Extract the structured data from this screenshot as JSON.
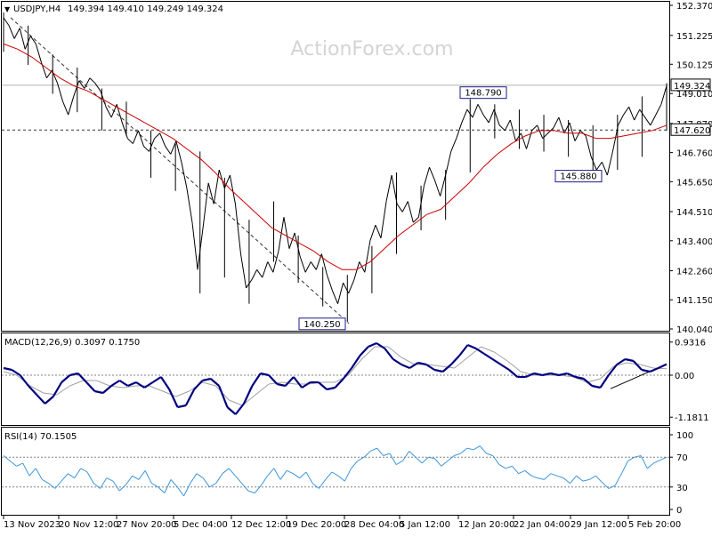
{
  "header": {
    "symbol": "USDJPY,H4",
    "ohlc": "149.394 149.410 149.249 149.324"
  },
  "watermark": "ActionForex.com",
  "colors": {
    "price": "#000000",
    "ma": "#cc0000",
    "macd_main": "#000080",
    "macd_signal": "#a0a0a0",
    "rsi": "#3c96dc",
    "grid": "#808080",
    "tag_border": "#1a1a8c"
  },
  "chart_data": [
    {
      "type": "line",
      "panel": "price",
      "title": "USDJPY,H4",
      "x_ticks": [
        "13 Nov 2023",
        "20 Nov 12:00",
        "27 Nov 20:00",
        "5 Dec 04:00",
        "12 Dec 12:00",
        "19 Dec 20:00",
        "28 Dec 04:00",
        "5 Jan 12:00",
        "12 Jan 20:00",
        "22 Jan 04:00",
        "29 Jan 12:00",
        "5 Feb 20:00"
      ],
      "y_ticks": [
        "152.370",
        "151.225",
        "150.125",
        "149.010",
        "147.870",
        "146.760",
        "145.650",
        "144.510",
        "143.400",
        "142.260",
        "141.150",
        "140.040"
      ],
      "ylim": [
        140.04,
        152.37
      ],
      "last_price_label": "149.324",
      "last_price": 149.324,
      "horizontal_level_label": "147.620",
      "horizontal_level": 147.62,
      "annotations": [
        {
          "label": "148.790",
          "value": 148.79
        },
        {
          "label": "145.880",
          "value": 145.88
        },
        {
          "label": "140.250",
          "value": 140.25
        }
      ],
      "series": [
        {
          "kind": "price",
          "values": [
            151.9,
            151.6,
            151.1,
            151.5,
            150.7,
            151.2,
            150.9,
            150.2,
            149.6,
            149.9,
            149.4,
            148.7,
            148.2,
            148.9,
            149.5,
            149.2,
            149.6,
            149.4,
            149.1,
            148.5,
            148.1,
            148.6,
            147.9,
            147.3,
            147.1,
            147.6,
            147.0,
            146.8,
            147.3,
            147.5,
            147.0,
            146.7,
            147.2,
            146.4,
            145.4,
            144.1,
            142.3,
            143.9,
            145.6,
            144.8,
            146.1,
            145.4,
            145.9,
            144.8,
            142.9,
            141.6,
            141.9,
            142.3,
            142.0,
            142.6,
            142.2,
            143.0,
            144.3,
            143.1,
            143.7,
            142.8,
            142.2,
            142.6,
            142.3,
            142.9,
            142.1,
            141.5,
            141.0,
            141.8,
            141.4,
            141.9,
            142.6,
            142.2,
            143.4,
            144.0,
            143.5,
            144.9,
            145.9,
            144.8,
            144.5,
            144.9,
            144.1,
            144.3,
            145.5,
            146.2,
            145.7,
            145.1,
            145.9,
            146.8,
            147.3,
            147.9,
            148.4,
            148.1,
            148.6,
            148.2,
            147.9,
            148.4,
            147.8,
            147.6,
            148.0,
            147.2,
            147.5,
            146.9,
            147.6,
            147.8,
            147.3,
            147.5,
            147.7,
            148.1,
            147.5,
            147.9,
            147.2,
            147.6,
            147.4,
            146.6,
            146.1,
            146.4,
            145.9,
            146.8,
            147.8,
            148.2,
            148.5,
            148.0,
            148.4,
            148.1,
            147.8,
            148.2,
            148.6,
            149.3
          ],
          "ranges": [
            [
              150.6,
              152.1
            ],
            [
              150.1,
              151.6
            ],
            [
              149.0,
              150.5
            ],
            [
              148.3,
              150.0
            ],
            [
              147.6,
              149.2
            ],
            [
              147.4,
              148.7
            ],
            [
              145.8,
              147.6
            ],
            [
              145.3,
              147.1
            ],
            [
              141.4,
              146.8
            ],
            [
              142.0,
              145.8
            ],
            [
              141.0,
              144.2
            ],
            [
              142.6,
              144.9
            ],
            [
              141.8,
              143.6
            ],
            [
              140.9,
              142.4
            ],
            [
              140.3,
              142.1
            ],
            [
              141.4,
              143.2
            ],
            [
              142.9,
              146.0
            ],
            [
              143.8,
              145.5
            ],
            [
              144.2,
              146.1
            ],
            [
              146.0,
              148.8
            ],
            [
              147.3,
              148.6
            ],
            [
              146.9,
              148.4
            ],
            [
              146.8,
              148.2
            ],
            [
              146.6,
              148.0
            ],
            [
              145.9,
              147.8
            ],
            [
              146.1,
              148.2
            ],
            [
              146.6,
              148.9
            ],
            [
              147.6,
              149.4
            ]
          ]
        },
        {
          "kind": "ma",
          "values": [
            150.9,
            150.7,
            150.4,
            150.0,
            149.6,
            149.3,
            149.1,
            148.8,
            148.5,
            148.2,
            147.9,
            147.6,
            147.3,
            146.9,
            146.5,
            146.0,
            145.4,
            144.9,
            144.4,
            143.9,
            143.6,
            143.3,
            143.0,
            142.6,
            142.3,
            142.3,
            142.6,
            143.1,
            143.6,
            144.0,
            144.4,
            144.6,
            145.1,
            145.6,
            146.2,
            146.7,
            147.1,
            147.4,
            147.6,
            147.6,
            147.5,
            147.5,
            147.3,
            147.3,
            147.4,
            147.5,
            147.6,
            147.8
          ]
        }
      ]
    },
    {
      "type": "line",
      "panel": "macd",
      "title": "MACD(12,26,9) 0.3097 0.1750",
      "y_ticks": [
        "0.9316",
        "0.00",
        "-1.1811"
      ],
      "ylim": [
        -1.35,
        1.0
      ],
      "series": [
        {
          "kind": "main",
          "values": [
            0.2,
            0.15,
            0.0,
            -0.3,
            -0.55,
            -0.8,
            -0.6,
            -0.2,
            0.0,
            0.05,
            -0.2,
            -0.45,
            -0.5,
            -0.3,
            -0.15,
            -0.3,
            -0.2,
            -0.35,
            -0.2,
            -0.05,
            -0.4,
            -0.9,
            -0.85,
            -0.4,
            -0.15,
            -0.1,
            -0.3,
            -0.9,
            -1.1,
            -0.8,
            -0.3,
            0.05,
            0.0,
            -0.25,
            -0.3,
            -0.05,
            -0.35,
            -0.2,
            -0.2,
            -0.4,
            -0.35,
            -0.1,
            0.2,
            0.55,
            0.8,
            0.9,
            0.75,
            0.45,
            0.3,
            0.2,
            0.35,
            0.3,
            0.15,
            0.1,
            0.3,
            0.55,
            0.85,
            0.75,
            0.6,
            0.45,
            0.3,
            0.15,
            -0.05,
            -0.05,
            0.05,
            0.0,
            0.05,
            0.0,
            0.05,
            -0.05,
            -0.1,
            -0.3,
            -0.35,
            0.0,
            0.3,
            0.45,
            0.4,
            0.15,
            0.1,
            0.2,
            0.31
          ]
        },
        {
          "kind": "signal",
          "values": [
            0.1,
            0.0,
            -0.3,
            -0.5,
            -0.55,
            -0.3,
            -0.15,
            -0.15,
            -0.3,
            -0.35,
            -0.3,
            -0.3,
            -0.45,
            -0.6,
            -0.45,
            -0.2,
            -0.3,
            -0.7,
            -0.85,
            -0.55,
            -0.25,
            -0.2,
            -0.25,
            -0.25,
            -0.2,
            -0.2,
            0.0,
            0.45,
            0.8,
            0.8,
            0.5,
            0.3,
            0.3,
            0.25,
            0.2,
            0.5,
            0.8,
            0.65,
            0.4,
            0.1,
            0.0,
            0.0,
            0.0,
            -0.05,
            -0.2,
            -0.1,
            0.25,
            0.35,
            0.3,
            0.2,
            0.18
          ]
        }
      ]
    },
    {
      "type": "line",
      "panel": "rsi",
      "title": "RSI(14) 70.1505",
      "y_ticks": [
        "100",
        "70",
        "30",
        "0"
      ],
      "ylim": [
        0,
        100
      ],
      "levels": [
        70,
        30
      ],
      "series": [
        {
          "kind": "rsi",
          "values": [
            72,
            65,
            58,
            62,
            45,
            55,
            40,
            35,
            28,
            38,
            48,
            42,
            55,
            50,
            35,
            28,
            42,
            38,
            25,
            33,
            45,
            40,
            52,
            35,
            30,
            22,
            40,
            30,
            18,
            35,
            48,
            42,
            30,
            35,
            48,
            55,
            45,
            35,
            25,
            22,
            32,
            45,
            55,
            40,
            52,
            48,
            42,
            50,
            35,
            28,
            40,
            50,
            45,
            38,
            55,
            65,
            70,
            78,
            82,
            72,
            75,
            60,
            65,
            78,
            70,
            62,
            70,
            68,
            58,
            65,
            72,
            75,
            82,
            80,
            85,
            75,
            72,
            60,
            55,
            58,
            48,
            52,
            45,
            42,
            40,
            48,
            45,
            42,
            35,
            45,
            38,
            40,
            45,
            36,
            28,
            32,
            48,
            65,
            70,
            72,
            55,
            62,
            66,
            70
          ]
        }
      ]
    }
  ]
}
